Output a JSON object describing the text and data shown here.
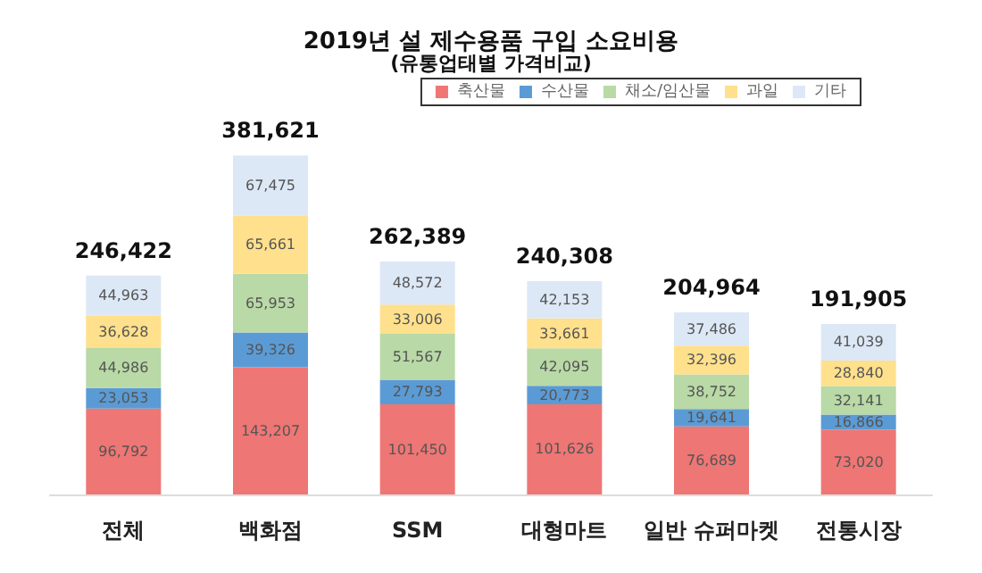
{
  "chart_data": {
    "type": "bar",
    "title": "2019년 설 제수용품 구입 소요비용",
    "subtitle": "(유통업태별 가격비교)",
    "stacked": true,
    "legend": "top right",
    "categories": [
      "전체",
      "백화점",
      "SSM",
      "대형마트",
      "일반 슈퍼마켓",
      "전통시장"
    ],
    "series": [
      {
        "name": "축산물",
        "color": "#ee7674",
        "values": [
          96792,
          143207,
          101450,
          101626,
          76689,
          73020
        ],
        "value_labels": [
          "96,792",
          "143,207",
          "101,450",
          "101,626",
          "76,689",
          "73,020"
        ]
      },
      {
        "name": "수산물",
        "color": "#5b9bd5",
        "values": [
          23053,
          39326,
          27793,
          20773,
          19641,
          16866
        ],
        "value_labels": [
          "23,053",
          "39,326",
          "27,793",
          "20,773",
          "19,641",
          "16,866"
        ]
      },
      {
        "name": "채소/임산물",
        "color": "#b9d9a6",
        "values": [
          44986,
          65953,
          51567,
          42095,
          38752,
          32141
        ],
        "value_labels": [
          "44,986",
          "65,953",
          "51,567",
          "42,095",
          "38,752",
          "32,141"
        ]
      },
      {
        "name": "과일",
        "color": "#ffe08c",
        "values": [
          36628,
          65661,
          33006,
          33661,
          32396,
          28840
        ],
        "value_labels": [
          "36,628",
          "65,661",
          "33,006",
          "33,661",
          "32,396",
          "28,840"
        ]
      },
      {
        "name": "기타",
        "color": "#dde8f6",
        "values": [
          44963,
          67475,
          48572,
          42153,
          37486,
          41039
        ],
        "value_labels": [
          "44,963",
          "67,475",
          "48,572",
          "42,153",
          "37,486",
          "41,039"
        ]
      }
    ],
    "totals": [
      "246,422",
      "381,621",
      "262,389",
      "240,308",
      "204,964",
      "191,905"
    ]
  }
}
